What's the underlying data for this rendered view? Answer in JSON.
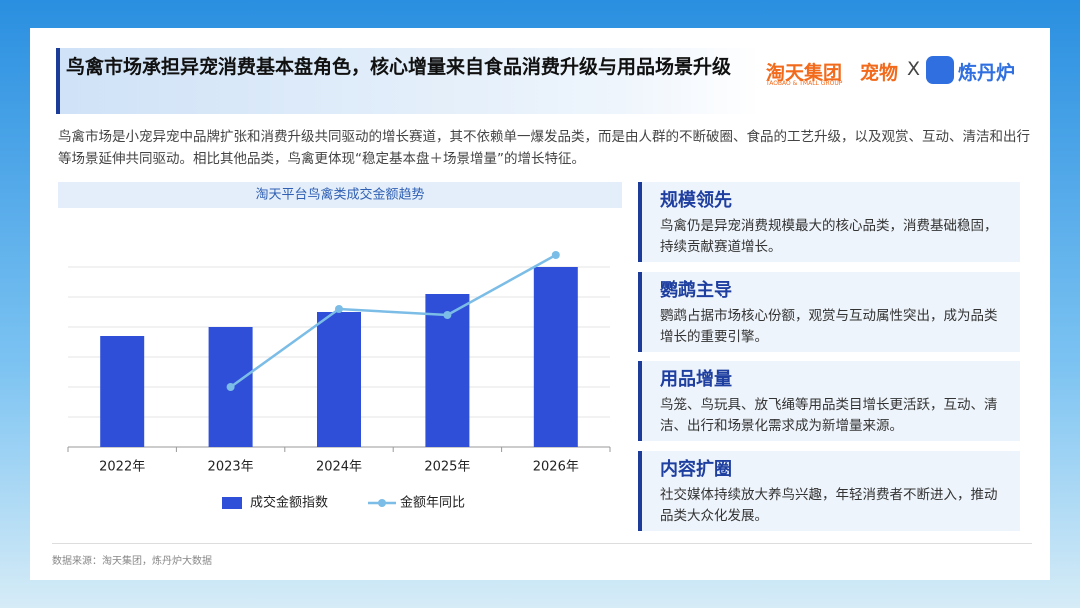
{
  "header": {
    "title": "鸟禽市场承担异宠消费基本盘角色，核心增量来自食品消费升级与用品场景升级",
    "logo_main": "淘天集团",
    "logo_sub": "TAOBAO & TMALL GROUP",
    "logo_pet": "宠物",
    "logo_x": "X",
    "logo_partner": "炼丹炉"
  },
  "intro": "鸟禽市场是小宠异宠中品牌扩张和消费升级共同驱动的增长赛道，其不依赖单一爆发品类，而是由人群的不断破圈、食品的工艺升级，以及观赏、互动、清洁和出行等场景延伸共同驱动。相比其他品类，鸟禽更体现“稳定基本盘＋场景增量”的增长特征。",
  "chart_data": {
    "type": "bar_line",
    "title": "淘天平台鸟禽类成交金额趋势",
    "categories": [
      "2022年",
      "2023年",
      "2024年",
      "2025年",
      "2026年"
    ],
    "series": [
      {
        "name": "成交金额指数",
        "type": "bar",
        "color": "#2f4fd8",
        "values": [
          3.7,
          4.0,
          4.5,
          5.1,
          6.0
        ]
      },
      {
        "name": "金额年同比",
        "type": "line",
        "color": "#7bbde6",
        "values": [
          null,
          2.0,
          4.6,
          4.4,
          6.4
        ]
      }
    ],
    "ylim": [
      0,
      6.5
    ],
    "grid_lines": [
      1,
      2,
      3,
      4,
      5,
      6
    ],
    "legend": "bottom"
  },
  "cards": [
    {
      "title": "规模领先",
      "text": "鸟禽仍是异宠消费规模最大的核心品类，消费基础稳固，持续贡献赛道增长。"
    },
    {
      "title": "鹦鹉主导",
      "text": "鹦鹉占据市场核心份额，观赏与互动属性突出，成为品类增长的重要引擎。"
    },
    {
      "title": "用品增量",
      "text": "鸟笼、鸟玩具、放飞绳等用品类目增长更活跃，互动、清洁、出行和场景化需求成为新增量来源。"
    },
    {
      "title": "内容扩圈",
      "text": "社交媒体持续放大养鸟兴趣，年轻消费者不断进入，推动品类大众化发展。"
    }
  ],
  "source": "数据来源：淘天集团，炼丹炉大数据"
}
